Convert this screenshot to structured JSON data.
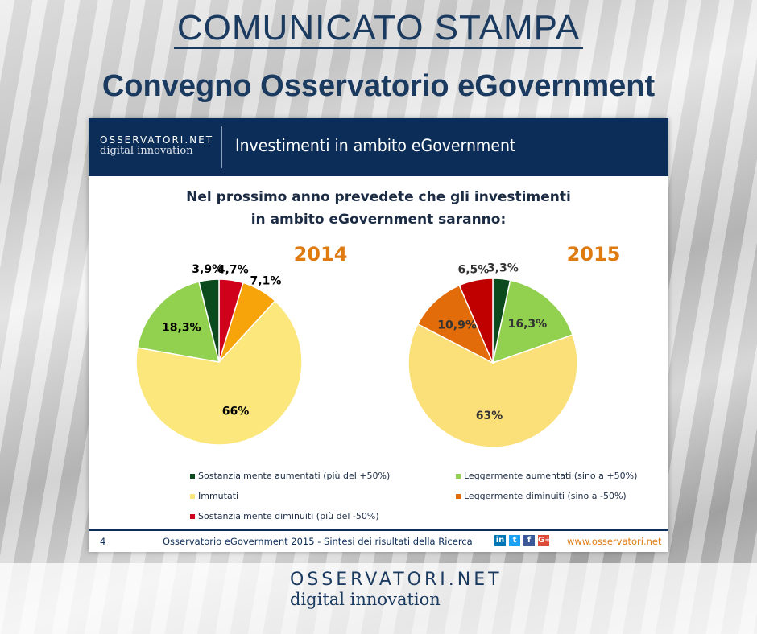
{
  "header": {
    "label": "COMUNICATO STAMPA",
    "title": "Convegno Osservatorio eGovernment"
  },
  "slide": {
    "logo": {
      "line1": "OSSERVATORI.NET",
      "line2": "digital innovation"
    },
    "title": "Investimenti in ambito eGovernment",
    "question_line1": "Nel prossimo anno prevedete che gli investimenti",
    "question_line2": "in ambito eGovernment saranno:",
    "footer": {
      "page": "4",
      "text": "Osservatorio eGovernment 2015 - Sintesi dei risultati della Ricerca",
      "url": "www.osservatori.net",
      "social": [
        "linkedin-icon",
        "twitter-icon",
        "facebook-icon",
        "google-plus-icon"
      ]
    }
  },
  "chart_data": [
    {
      "type": "pie",
      "title": "2014",
      "title_color": "#e07b12",
      "slices": [
        {
          "category": "Sostanzialmente diminuiti (più del -50%)",
          "value": 4.7,
          "label": "4,7%",
          "color": "#d0021b"
        },
        {
          "category": "Leggermente diminuiti (sino a -50%)",
          "value": 7.1,
          "label": "7,1%",
          "color": "#f7a30a"
        },
        {
          "category": "Immutati",
          "value": 66,
          "label": "66%",
          "color": "#fbe77c"
        },
        {
          "category": "Leggermente aumentati (sino a +50%)",
          "value": 18.3,
          "label": "18,3%",
          "color": "#92d050"
        },
        {
          "category": "Sostanzialmente aumentati (più del +50%)",
          "value": 3.9,
          "label": "3,9%",
          "color": "#0b4a1c"
        }
      ]
    },
    {
      "type": "pie",
      "title": "2015",
      "title_color": "#e07b12",
      "slices": [
        {
          "category": "Sostanzialmente aumentati (più del +50%)",
          "value": 3.3,
          "label": "3,3%",
          "color": "#0b4a1c"
        },
        {
          "category": "Leggermente aumentati (sino a +50%)",
          "value": 16.3,
          "label": "16,3%",
          "color": "#92d050"
        },
        {
          "category": "Immutati",
          "value": 63,
          "label": "63%",
          "color": "#fbe07a"
        },
        {
          "category": "Leggermente diminuiti (sino a -50%)",
          "value": 10.9,
          "label": "10,9%",
          "color": "#e36c0a"
        },
        {
          "category": "Sostanzialmente diminuiti (più del -50%)",
          "value": 6.5,
          "label": "6,5%",
          "color": "#c00000"
        }
      ]
    }
  ],
  "legend": [
    {
      "label": "Sostanzialmente aumentati (più del +50%)",
      "color": "#0b4a1c"
    },
    {
      "label": "Leggermente aumentati (sino a +50%)",
      "color": "#92d050"
    },
    {
      "label": "Immutati",
      "color": "#fbe77c"
    },
    {
      "label": "Leggermente diminuiti (sino a -50%)",
      "color": "#e36c0a"
    },
    {
      "label": "Sostanzialmente diminuiti (più del -50%)",
      "color": "#d0021b"
    }
  ],
  "bottom_logo": {
    "line1": "OSSERVATORI.NET",
    "line2": "digital innovation"
  }
}
